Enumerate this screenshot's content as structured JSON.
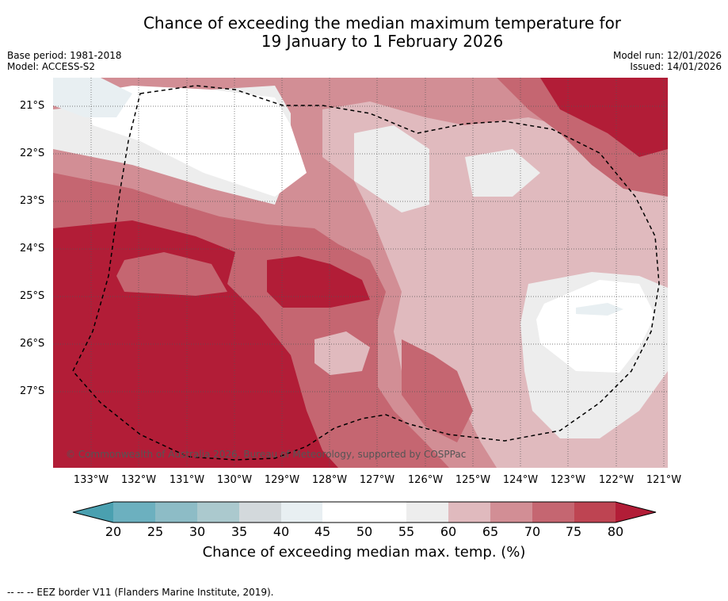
{
  "title": {
    "line1": "Chance of exceeding the median maximum temperature for",
    "line2": "19 January to 1 February 2026"
  },
  "meta": {
    "base_period": "Base period: 1981-2018",
    "model": "Model: ACCESS-S2",
    "model_run": "Model run: 12/01/2026",
    "issued": "Issued: 14/01/2026"
  },
  "map": {
    "latitude_labels": [
      "21°S",
      "22°S",
      "23°S",
      "24°S",
      "25°S",
      "26°S",
      "27°S"
    ],
    "longitude_labels": [
      "133°W",
      "132°W",
      "131°W",
      "130°W",
      "129°W",
      "128°W",
      "127°W",
      "126°W",
      "125°W",
      "124°W",
      "123°W",
      "122°W",
      "121°W"
    ],
    "copyright": "© Commonwealth of Australia 2026, Bureau of Meteorology, supported by COSPPac"
  },
  "legend": {
    "ticks": [
      "20",
      "25",
      "30",
      "35",
      "40",
      "45",
      "50",
      "55",
      "60",
      "65",
      "70",
      "75",
      "80"
    ],
    "colors": [
      "#4aa0b0",
      "#6cb0bf",
      "#8dbcc6",
      "#abc9ce",
      "#d3d9dc",
      "#e8eff2",
      "#ffffff",
      "#ffffff",
      "#ededed",
      "#e0babe",
      "#d28e95",
      "#c56671",
      "#be4452",
      "#b21d37"
    ],
    "title": "Chance of exceeding median max. temp. (%)"
  },
  "footer": "--  --  -- EEZ border V11 (Flanders Marine Institute, 2019)."
}
